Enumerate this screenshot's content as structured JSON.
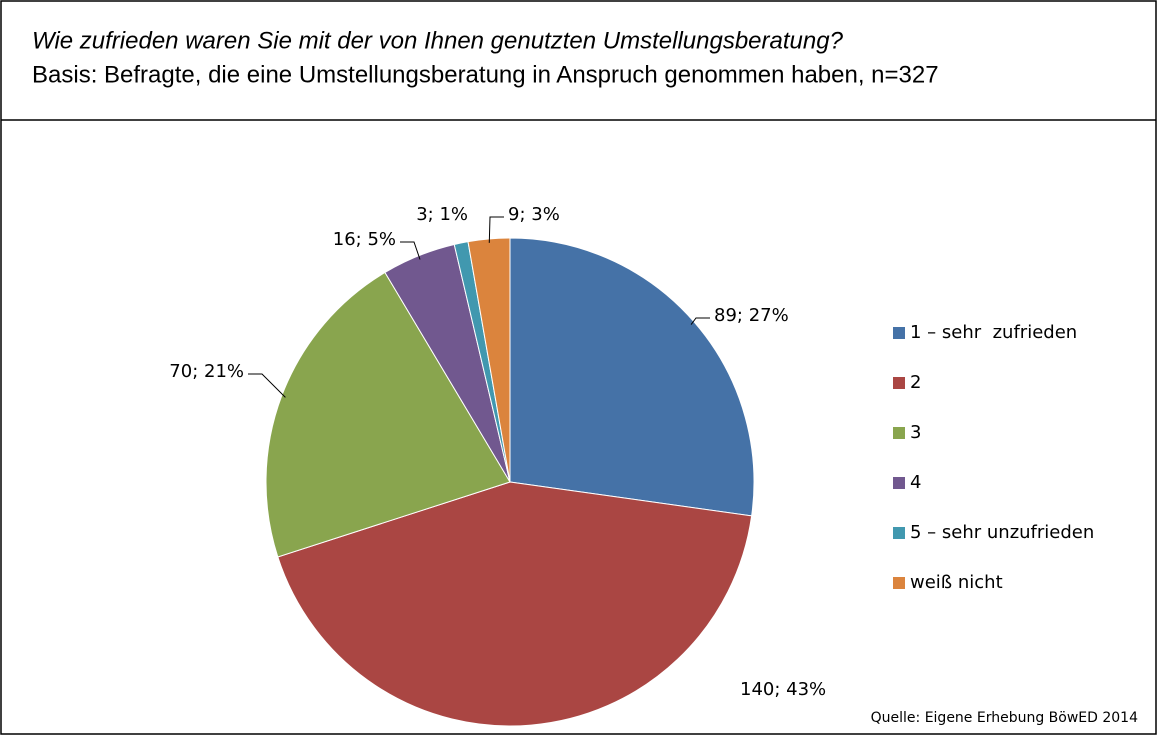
{
  "chart_data": {
    "type": "pie",
    "title": "Wie zufrieden waren Sie mit der von Ihnen genutzten Umstellungsberatung?",
    "subtitle": "Basis: Befragte, die eine Umstellungsberatung in Anspruch genommen haben, n=327",
    "categories": [
      "1 – sehr  zufrieden",
      "2",
      "3",
      "4",
      "5 – sehr unzufrieden",
      "weiß nicht"
    ],
    "values": [
      89,
      140,
      70,
      16,
      3,
      9
    ],
    "value_labels": [
      "89; 27%",
      "140; 43%",
      "70; 21%",
      "16; 5%",
      "3; 1%",
      "9; 3%"
    ],
    "colors": [
      "#4572A7",
      "#AA4643",
      "#89A54E",
      "#71588F",
      "#4198AF",
      "#DB843D"
    ],
    "legend": "right",
    "source": "Quelle: Eigene Erhebung BöwED 2014"
  }
}
